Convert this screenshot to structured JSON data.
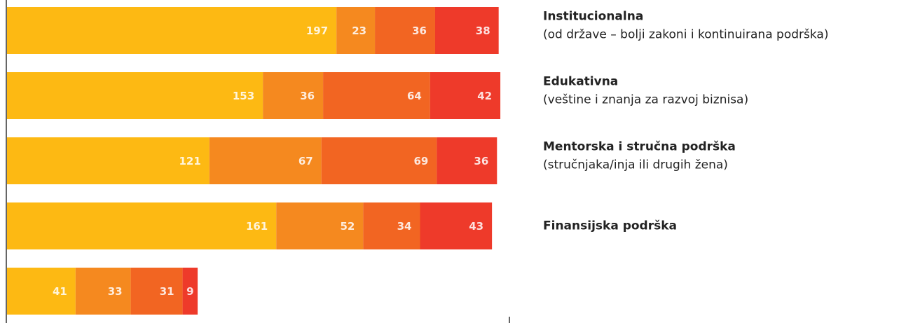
{
  "chart_data": {
    "type": "stacked_bar_horizontal",
    "categories": [
      "Institucionalna",
      "Edukativna",
      "Mentorska i stručna podrška",
      "Finansijska podrška",
      null
    ],
    "category_notes": [
      "(od države – bolji zakoni i kontinuirana podrška)",
      "(veštine i znanja za razvoj biznisa)",
      "(stručnjaka/inja ili drugih žena)",
      null,
      null
    ],
    "series": [
      {
        "color": "#FDB913",
        "values": [
          197,
          153,
          121,
          161,
          41
        ]
      },
      {
        "color": "#F5891F",
        "values": [
          23,
          36,
          67,
          52,
          33
        ]
      },
      {
        "color": "#F26522",
        "values": [
          36,
          64,
          69,
          34,
          31
        ]
      },
      {
        "color": "#EE3A2A",
        "values": [
          38,
          42,
          36,
          43,
          9
        ]
      }
    ],
    "xlim": [
      0,
      300
    ]
  }
}
